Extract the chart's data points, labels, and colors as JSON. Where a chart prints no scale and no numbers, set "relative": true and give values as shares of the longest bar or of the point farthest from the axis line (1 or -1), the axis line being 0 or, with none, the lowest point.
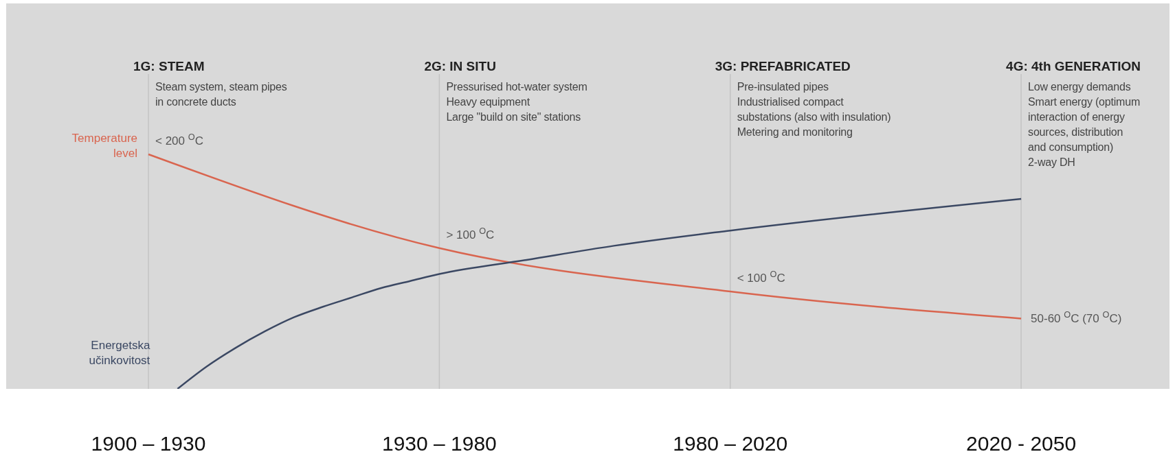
{
  "chart_data": {
    "type": "line",
    "relative": true,
    "categories": [
      "1900 – 1930",
      null,
      null,
      null,
      null,
      null,
      null,
      null,
      null,
      null,
      "1930 – 1980",
      null,
      null,
      null,
      null,
      null,
      null,
      null,
      null,
      null,
      "1980 – 2020",
      null,
      null,
      null,
      null,
      null,
      null,
      null,
      null,
      null,
      "2020 - 2050"
    ],
    "grid": "x",
    "legend": false,
    "marker": "none",
    "line_style": "solid",
    "series": [
      {
        "name": "Temperature level",
        "color": "#d9654f",
        "values": [
          1,
          null,
          null,
          null,
          null,
          null,
          null,
          null,
          null,
          null,
          0.6,
          null,
          null,
          null,
          null,
          null,
          null,
          null,
          null,
          null,
          0.415,
          null,
          null,
          null,
          null,
          null,
          null,
          null,
          null,
          null,
          0.3
        ]
      },
      {
        "name": "Energetska učinkovitost",
        "color": "#3b4863",
        "values": [
          null,
          0,
          0.095,
          0.175,
          0.245,
          0.305,
          0.35,
          0.39,
          0.43,
          0.46,
          0.49,
          null,
          null,
          0.55,
          null,
          null,
          0.61,
          null,
          null,
          null,
          0.675,
          null,
          null,
          null,
          null,
          null,
          null,
          null,
          null,
          null,
          0.81
        ]
      }
    ],
    "annotations": [
      "1G: STEAM",
      "Steam system, steam pipes\nin concrete ducts",
      "2G: IN SITU",
      "Pressurised hot-water system\nHeavy equipment\nLarge \"build on site\" stations",
      "3G: PREFABRICATED",
      "Pre-insulated pipes\nIndustrialised compact\nsubstations (also with insulation)\nMetering and monitoring",
      "4G: 4th GENERATION",
      "Low energy demands\nSmart energy (optimum\ninteraction of energy\nsources, distribution\nand consumption)\n2-way DH",
      {
        "text": "< 200 $^{O}$C",
        "x": "1900 – 1930",
        "y": 1
      },
      {
        "text": "> 100 $^{O}$C",
        "x": "1930 – 1980",
        "y": 0.6
      },
      {
        "text": "< 100 $^{O}$C",
        "x": "1980 – 2020",
        "y": 0.415
      },
      {
        "text": "50-60 $^{O}$C (70 $^{O}$C)",
        "x": "2020 - 2050",
        "y": 0.3
      }
    ]
  }
}
